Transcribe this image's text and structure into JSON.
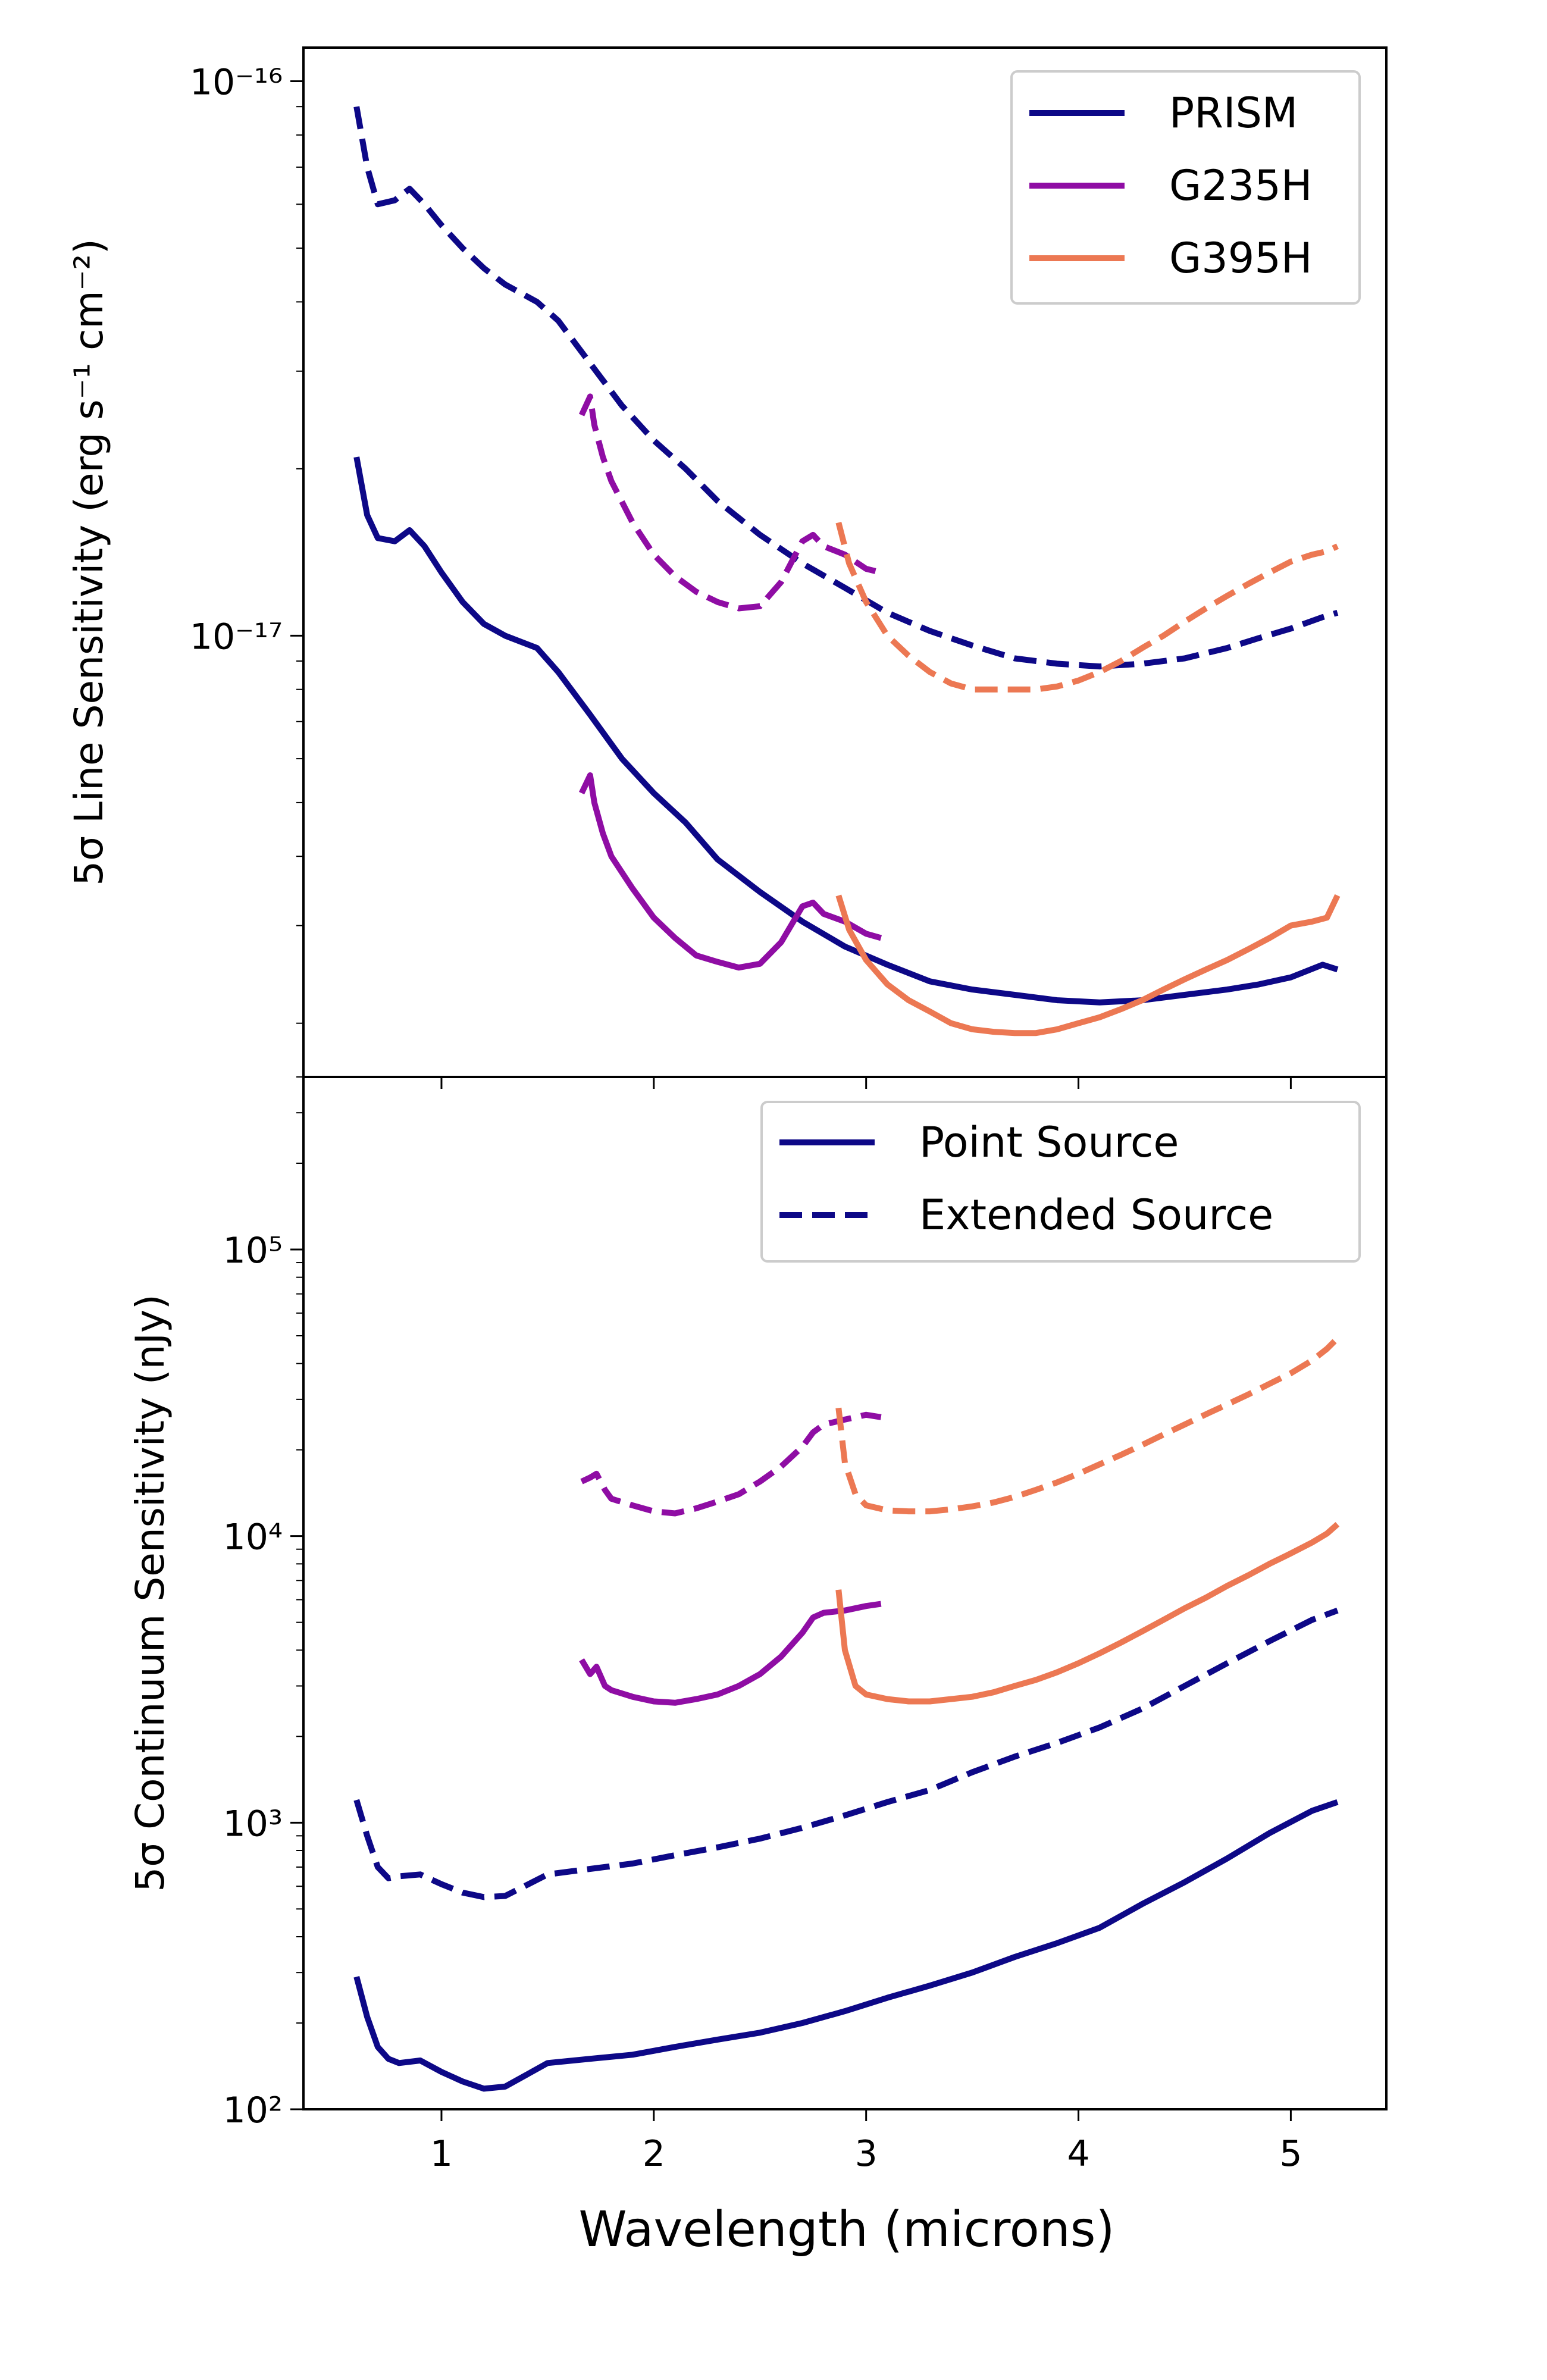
{
  "chart_data": [
    {
      "type": "line",
      "panel": "top",
      "ylabel": "5σ Line Sensitivity (erg s⁻¹ cm⁻²)",
      "yscale": "log",
      "ylim": [
        1.6e-18,
        1.15e-16
      ],
      "xlim": [
        0.35,
        5.45
      ],
      "ytick_labels": [
        "10⁻¹⁷",
        "10⁻¹⁶"
      ],
      "legend": {
        "placement": "top-right",
        "entries": [
          {
            "label": "PRISM",
            "color": "#0d0887"
          },
          {
            "label": "G235H",
            "color": "#8f0da4"
          },
          {
            "label": "G395H",
            "color": "#ec7853"
          }
        ]
      },
      "series": [
        {
          "name": "PRISM",
          "style": "solid",
          "color": "#0d0887",
          "x": [
            0.6,
            0.65,
            0.7,
            0.78,
            0.85,
            0.92,
            1.0,
            1.1,
            1.2,
            1.3,
            1.45,
            1.55,
            1.7,
            1.85,
            2.0,
            2.15,
            2.3,
            2.5,
            2.7,
            2.9,
            3.1,
            3.3,
            3.5,
            3.7,
            3.9,
            4.1,
            4.3,
            4.5,
            4.7,
            4.85,
            5.0,
            5.15,
            5.22
          ],
          "y": [
            2.1e-17,
            1.65e-17,
            1.5e-17,
            1.48e-17,
            1.55e-17,
            1.45e-17,
            1.3e-17,
            1.15e-17,
            1.05e-17,
            1e-17,
            9.5e-18,
            8.6e-18,
            7.2e-18,
            6e-18,
            5.2e-18,
            4.6e-18,
            3.95e-18,
            3.45e-18,
            3.05e-18,
            2.75e-18,
            2.55e-18,
            2.38e-18,
            2.3e-18,
            2.25e-18,
            2.2e-18,
            2.18e-18,
            2.2e-18,
            2.25e-18,
            2.3e-18,
            2.35e-18,
            2.42e-18,
            2.55e-18,
            2.5e-18
          ]
        },
        {
          "name": "PRISM",
          "style": "dashed",
          "color": "#0d0887",
          "x": [
            0.6,
            0.65,
            0.7,
            0.78,
            0.85,
            0.92,
            1.0,
            1.1,
            1.2,
            1.3,
            1.45,
            1.55,
            1.7,
            1.85,
            2.0,
            2.15,
            2.3,
            2.5,
            2.7,
            2.9,
            3.1,
            3.3,
            3.5,
            3.7,
            3.9,
            4.1,
            4.3,
            4.5,
            4.7,
            4.85,
            5.0,
            5.15,
            5.22
          ],
          "y": [
            9e-17,
            7e-17,
            6e-17,
            6.1e-17,
            6.4e-17,
            6e-17,
            5.5e-17,
            5e-17,
            4.6e-17,
            4.3e-17,
            4e-17,
            3.7e-17,
            3.1e-17,
            2.6e-17,
            2.25e-17,
            2e-17,
            1.75e-17,
            1.52e-17,
            1.35e-17,
            1.22e-17,
            1.1e-17,
            1.02e-17,
            9.6e-18,
            9.1e-18,
            8.9e-18,
            8.8e-18,
            8.9e-18,
            9.1e-18,
            9.5e-18,
            9.9e-18,
            1.03e-17,
            1.08e-17,
            1.1e-17
          ]
        },
        {
          "name": "G235H",
          "style": "solid",
          "color": "#8f0da4",
          "x": [
            1.66,
            1.7,
            1.72,
            1.76,
            1.8,
            1.9,
            2.0,
            2.1,
            2.2,
            2.3,
            2.4,
            2.5,
            2.6,
            2.7,
            2.75,
            2.8,
            2.9,
            3.0,
            3.07
          ],
          "y": [
            5.2e-18,
            5.6e-18,
            5e-18,
            4.4e-18,
            4e-18,
            3.5e-18,
            3.1e-18,
            2.85e-18,
            2.65e-18,
            2.58e-18,
            2.52e-18,
            2.56e-18,
            2.8e-18,
            3.25e-18,
            3.3e-18,
            3.15e-18,
            3.05e-18,
            2.9e-18,
            2.85e-18
          ]
        },
        {
          "name": "G235H",
          "style": "dashed",
          "color": "#8f0da4",
          "x": [
            1.66,
            1.7,
            1.72,
            1.76,
            1.8,
            1.9,
            2.0,
            2.1,
            2.2,
            2.3,
            2.4,
            2.5,
            2.6,
            2.7,
            2.75,
            2.8,
            2.9,
            3.0,
            3.07
          ],
          "y": [
            2.5e-17,
            2.7e-17,
            2.4e-17,
            2.1e-17,
            1.9e-17,
            1.6e-17,
            1.4e-17,
            1.28e-17,
            1.2e-17,
            1.15e-17,
            1.12e-17,
            1.13e-17,
            1.25e-17,
            1.48e-17,
            1.52e-17,
            1.45e-17,
            1.4e-17,
            1.32e-17,
            1.3e-17
          ]
        },
        {
          "name": "G395H",
          "style": "solid",
          "color": "#ec7853",
          "x": [
            2.87,
            2.92,
            3.0,
            3.1,
            3.2,
            3.3,
            3.4,
            3.5,
            3.6,
            3.7,
            3.8,
            3.9,
            4.0,
            4.1,
            4.2,
            4.3,
            4.4,
            4.5,
            4.6,
            4.7,
            4.8,
            4.9,
            5.0,
            5.1,
            5.17,
            5.22
          ],
          "y": [
            3.4e-18,
            2.95e-18,
            2.6e-18,
            2.35e-18,
            2.2e-18,
            2.1e-18,
            2e-18,
            1.95e-18,
            1.93e-18,
            1.92e-18,
            1.92e-18,
            1.95e-18,
            2e-18,
            2.05e-18,
            2.12e-18,
            2.2e-18,
            2.3e-18,
            2.4e-18,
            2.5e-18,
            2.6e-18,
            2.72e-18,
            2.85e-18,
            3e-18,
            3.05e-18,
            3.1e-18,
            3.4e-18
          ]
        },
        {
          "name": "G395H",
          "style": "dashed",
          "color": "#ec7853",
          "x": [
            2.87,
            2.92,
            3.0,
            3.1,
            3.2,
            3.3,
            3.4,
            3.5,
            3.6,
            3.7,
            3.8,
            3.9,
            4.0,
            4.1,
            4.2,
            4.3,
            4.4,
            4.5,
            4.6,
            4.7,
            4.8,
            4.9,
            5.0,
            5.1,
            5.17,
            5.22
          ],
          "y": [
            1.6e-17,
            1.35e-17,
            1.15e-17,
            1e-17,
            9.2e-18,
            8.6e-18,
            8.2e-18,
            8e-18,
            8e-18,
            8e-18,
            8e-18,
            8.1e-18,
            8.3e-18,
            8.6e-18,
            9e-18,
            9.5e-18,
            1e-17,
            1.06e-17,
            1.12e-17,
            1.18e-17,
            1.24e-17,
            1.3e-17,
            1.36e-17,
            1.4e-17,
            1.42e-17,
            1.45e-17
          ]
        }
      ]
    },
    {
      "type": "line",
      "panel": "bottom",
      "xlabel": "Wavelength (microns)",
      "ylabel": "5σ Continuum Sensitivity (nJy)",
      "yscale": "log",
      "ylim": [
        100,
        400000
      ],
      "xlim": [
        0.35,
        5.45
      ],
      "xtick_labels": [
        "1",
        "2",
        "3",
        "4",
        "5"
      ],
      "ytick_labels": [
        "10²",
        "10³",
        "10⁴",
        "10⁵"
      ],
      "legend": {
        "placement": "top-right",
        "entries": [
          {
            "label": "Point Source",
            "style": "solid"
          },
          {
            "label": "Extended Source",
            "style": "dashed"
          }
        ]
      },
      "series": [
        {
          "name": "PRISM",
          "style": "solid",
          "color": "#0d0887",
          "x": [
            0.6,
            0.65,
            0.7,
            0.75,
            0.8,
            0.9,
            1.0,
            1.1,
            1.2,
            1.3,
            1.5,
            1.7,
            1.9,
            2.1,
            2.3,
            2.5,
            2.7,
            2.9,
            3.1,
            3.3,
            3.5,
            3.7,
            3.9,
            4.1,
            4.3,
            4.5,
            4.7,
            4.9,
            5.1,
            5.22
          ],
          "y": [
            290,
            210,
            165,
            150,
            145,
            148,
            135,
            125,
            118,
            120,
            145,
            150,
            155,
            165,
            175,
            185,
            200,
            220,
            245,
            270,
            300,
            340,
            380,
            430,
            520,
            620,
            750,
            920,
            1100,
            1180
          ]
        },
        {
          "name": "PRISM",
          "style": "dashed",
          "color": "#0d0887",
          "x": [
            0.6,
            0.65,
            0.7,
            0.75,
            0.8,
            0.9,
            1.0,
            1.1,
            1.2,
            1.3,
            1.5,
            1.7,
            1.9,
            2.1,
            2.3,
            2.5,
            2.7,
            2.9,
            3.1,
            3.3,
            3.5,
            3.7,
            3.9,
            4.1,
            4.3,
            4.5,
            4.7,
            4.9,
            5.1,
            5.22
          ],
          "y": [
            1200,
            900,
            700,
            640,
            650,
            660,
            610,
            570,
            550,
            555,
            660,
            690,
            720,
            770,
            820,
            880,
            960,
            1060,
            1180,
            1300,
            1500,
            1700,
            1900,
            2150,
            2500,
            3000,
            3600,
            4300,
            5100,
            5500
          ]
        },
        {
          "name": "G235H",
          "style": "solid",
          "color": "#8f0da4",
          "x": [
            1.66,
            1.7,
            1.73,
            1.77,
            1.8,
            1.9,
            2.0,
            2.1,
            2.2,
            2.3,
            2.4,
            2.5,
            2.6,
            2.7,
            2.75,
            2.8,
            2.9,
            3.0,
            3.07
          ],
          "y": [
            3700,
            3300,
            3500,
            3000,
            2900,
            2750,
            2650,
            2620,
            2700,
            2800,
            3000,
            3300,
            3800,
            4600,
            5200,
            5400,
            5500,
            5700,
            5800
          ]
        },
        {
          "name": "G235H",
          "style": "dashed",
          "color": "#8f0da4",
          "x": [
            1.66,
            1.7,
            1.73,
            1.77,
            1.8,
            1.9,
            2.0,
            2.1,
            2.2,
            2.3,
            2.4,
            2.5,
            2.6,
            2.7,
            2.75,
            2.8,
            2.9,
            3.0,
            3.07
          ],
          "y": [
            15500,
            16000,
            16500,
            14500,
            13500,
            12800,
            12200,
            12000,
            12500,
            13200,
            14000,
            15500,
            17500,
            20500,
            23000,
            24500,
            25500,
            26500,
            26000
          ]
        },
        {
          "name": "G395H",
          "style": "solid",
          "color": "#ec7853",
          "x": [
            2.87,
            2.9,
            2.95,
            3.0,
            3.1,
            3.2,
            3.3,
            3.4,
            3.5,
            3.6,
            3.7,
            3.8,
            3.9,
            4.0,
            4.1,
            4.2,
            4.3,
            4.4,
            4.5,
            4.6,
            4.7,
            4.8,
            4.9,
            5.0,
            5.1,
            5.17,
            5.22
          ],
          "y": [
            6500,
            4000,
            3000,
            2800,
            2700,
            2650,
            2650,
            2700,
            2750,
            2850,
            3000,
            3150,
            3350,
            3600,
            3900,
            4250,
            4650,
            5100,
            5600,
            6100,
            6700,
            7300,
            8000,
            8700,
            9500,
            10200,
            11000
          ]
        },
        {
          "name": "G395H",
          "style": "dashed",
          "color": "#ec7853",
          "x": [
            2.87,
            2.9,
            2.95,
            3.0,
            3.1,
            3.2,
            3.3,
            3.4,
            3.5,
            3.6,
            3.7,
            3.8,
            3.9,
            4.0,
            4.1,
            4.2,
            4.3,
            4.4,
            4.5,
            4.6,
            4.7,
            4.8,
            4.9,
            5.0,
            5.1,
            5.17,
            5.22
          ],
          "y": [
            28000,
            18000,
            14000,
            12800,
            12300,
            12200,
            12200,
            12400,
            12700,
            13100,
            13700,
            14500,
            15400,
            16500,
            17800,
            19200,
            20800,
            22600,
            24500,
            26600,
            28800,
            31200,
            34000,
            37000,
            41000,
            45000,
            49000
          ]
        }
      ]
    }
  ]
}
